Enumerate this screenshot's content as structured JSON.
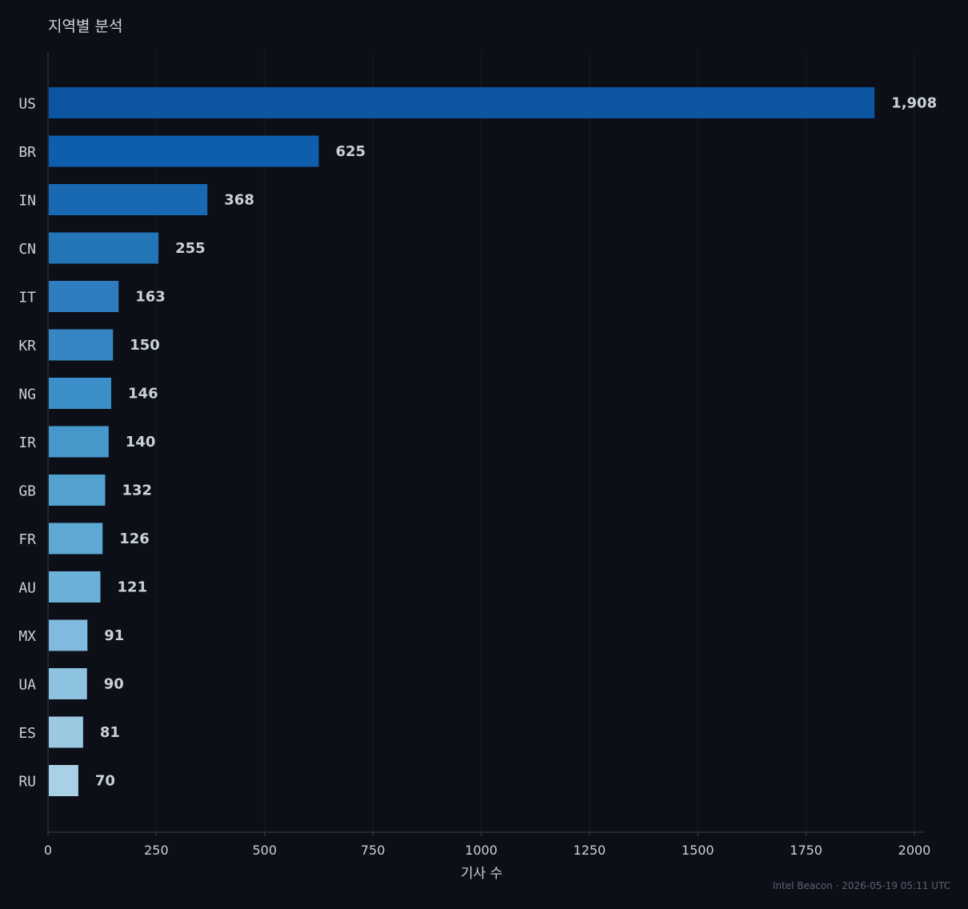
{
  "chart_data": {
    "type": "bar",
    "orientation": "horizontal",
    "title": "지역별 분석",
    "xlabel": "기사 수",
    "ylabel": "",
    "categories": [
      "US",
      "BR",
      "IN",
      "CN",
      "IT",
      "KR",
      "NG",
      "IR",
      "GB",
      "FR",
      "AU",
      "MX",
      "UA",
      "ES",
      "RU"
    ],
    "values": [
      1908,
      625,
      368,
      255,
      163,
      150,
      146,
      140,
      132,
      126,
      121,
      91,
      90,
      81,
      70
    ],
    "value_labels": [
      "1,908",
      "625",
      "368",
      "255",
      "163",
      "150",
      "146",
      "140",
      "132",
      "126",
      "121",
      "91",
      "90",
      "81",
      "70"
    ],
    "xlim": [
      0,
      2000
    ],
    "xticks": [
      0,
      250,
      500,
      750,
      1000,
      1250,
      1500,
      1750,
      2000
    ],
    "grid": "vertical",
    "colors": [
      "#0b55a1",
      "#0f5ead",
      "#1868b2",
      "#2474b8",
      "#2e7ebf",
      "#3586c3",
      "#3c8fc9",
      "#4798cb",
      "#52a1cf",
      "#5ea9d4",
      "#6bb0d8",
      "#80bade",
      "#8dc2e0",
      "#9bc9e2",
      "#a8d0e6"
    ]
  },
  "footer": "Intel Beacon · 2026-05-19 05:11 UTC"
}
